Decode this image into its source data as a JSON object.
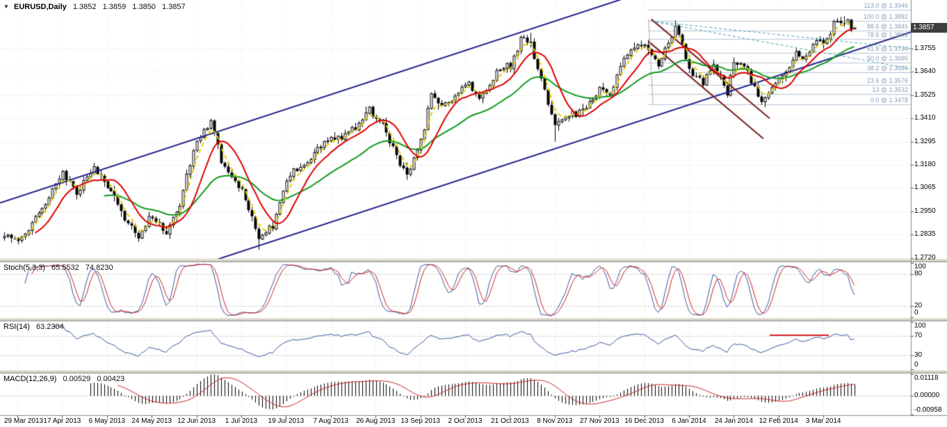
{
  "title_bar": {
    "symbol": "EURUSD,Daily",
    "open": "1.3852",
    "high": "1.3859",
    "low": "1.3850",
    "close": "1.3857"
  },
  "chart_data": {
    "type": "candlestick",
    "symbol": "EURUSD",
    "timeframe": "Daily",
    "x_labels": [
      "29 Mar 2013",
      "17 Apr 2013",
      "6 May 2013",
      "24 May 2013",
      "12 Jun 2013",
      "1 Jul 2013",
      "19 Jul 2013",
      "7 Aug 2013",
      "26 Aug 2013",
      "13 Sep 2013",
      "2 Oct 2013",
      "21 Oct 2013",
      "8 Nov 2013",
      "27 Nov 2013",
      "16 Dec 2013",
      "6 Jan 2014",
      "24 Jan 2014",
      "12 Feb 2014",
      "3 Mar 2014"
    ],
    "main": {
      "ylim": [
        1.2716,
        1.3995
      ],
      "y_ticks": [
        "1.3755",
        "1.3640",
        "1.3525",
        "1.3410",
        "1.3295",
        "1.3180",
        "1.3065",
        "1.2950",
        "1.2835",
        "1.2720"
      ],
      "price_badge": "1.3857",
      "grid_color": "#dcdcdc",
      "candles_n": 248,
      "candle_up_color": "#ffffff",
      "candle_down_color": "#000000",
      "candle_border_color": "#000000",
      "anchors": [
        [
          0,
          1.283
        ],
        [
          4,
          1.2812
        ],
        [
          8,
          1.289
        ],
        [
          13,
          1.302
        ],
        [
          17,
          1.313
        ],
        [
          21,
          1.3045
        ],
        [
          26,
          1.3165
        ],
        [
          30,
          1.3075
        ],
        [
          34,
          1.2945
        ],
        [
          39,
          1.2825
        ],
        [
          43,
          1.293
        ],
        [
          47,
          1.285
        ],
        [
          51,
          1.2985
        ],
        [
          56,
          1.331
        ],
        [
          60,
          1.34
        ],
        [
          63,
          1.3195
        ],
        [
          66,
          1.312
        ],
        [
          69,
          1.3055
        ],
        [
          74,
          1.2815
        ],
        [
          78,
          1.287
        ],
        [
          82,
          1.312
        ],
        [
          87,
          1.3175
        ],
        [
          91,
          1.3255
        ],
        [
          95,
          1.33
        ],
        [
          99,
          1.3335
        ],
        [
          102,
          1.336
        ],
        [
          106,
          1.3445
        ],
        [
          110,
          1.3375
        ],
        [
          114,
          1.3215
        ],
        [
          117,
          1.3125
        ],
        [
          121,
          1.329
        ],
        [
          124,
          1.3535
        ],
        [
          127,
          1.348
        ],
        [
          131,
          1.352
        ],
        [
          134,
          1.358
        ],
        [
          138,
          1.3515
        ],
        [
          143,
          1.364
        ],
        [
          147,
          1.3675
        ],
        [
          150,
          1.379
        ],
        [
          153,
          1.3795
        ],
        [
          156,
          1.3585
        ],
        [
          160,
          1.337
        ],
        [
          164,
          1.343
        ],
        [
          168,
          1.3445
        ],
        [
          171,
          1.35
        ],
        [
          173,
          1.357
        ],
        [
          176,
          1.3545
        ],
        [
          180,
          1.37
        ],
        [
          183,
          1.3775
        ],
        [
          187,
          1.3755
        ],
        [
          190,
          1.3665
        ],
        [
          195,
          1.3875
        ],
        [
          197,
          1.378
        ],
        [
          199,
          1.3635
        ],
        [
          203,
          1.359
        ],
        [
          206,
          1.3665
        ],
        [
          210,
          1.3545
        ],
        [
          212,
          1.3675
        ],
        [
          215,
          1.3665
        ],
        [
          218,
          1.3555
        ],
        [
          220,
          1.3485
        ],
        [
          224,
          1.359
        ],
        [
          227,
          1.364
        ],
        [
          230,
          1.372
        ],
        [
          233,
          1.37
        ],
        [
          235,
          1.3795
        ],
        [
          238,
          1.378
        ],
        [
          241,
          1.3865
        ],
        [
          244,
          1.3895
        ],
        [
          246,
          1.3865
        ],
        [
          247,
          1.3857
        ]
      ],
      "wick_overrides": [
        [
          74,
          "low",
          1.276
        ],
        [
          153,
          "high",
          1.3832
        ],
        [
          160,
          "low",
          1.3295
        ],
        [
          195,
          "high",
          1.3893
        ],
        [
          220,
          "low",
          1.3477
        ],
        [
          244,
          "high",
          1.3915
        ]
      ],
      "last_candle": [
        1.3852,
        1.3859,
        1.385,
        1.3857
      ],
      "moving_averages": [
        {
          "name": "ma-slow-green",
          "type": "ema",
          "period": 30,
          "color": "#119b1f",
          "width": 2
        },
        {
          "name": "ma-fast-yellow",
          "type": "ema",
          "period": 4,
          "color": "#e3cf00",
          "width": 2,
          "dash": [
            6,
            4
          ]
        },
        {
          "name": "ma-medium-red",
          "type": "sma",
          "period": 10,
          "color": "#e00000",
          "width": 2
        }
      ],
      "trendlines": [
        {
          "name": "ascending-channel-upper",
          "color": "#22228e",
          "width": 2,
          "pts": [
            [
              0.0,
              1.2992
            ],
            [
              1.0,
              1.4467
            ]
          ]
        },
        {
          "name": "ascending-channel-lower",
          "color": "#22228e",
          "width": 2,
          "pts": [
            [
              0.0,
              1.2361
            ],
            [
              1.0,
              1.3836
            ]
          ]
        },
        {
          "name": "descending-line-upper",
          "color": "#7c1f1f",
          "width": 2,
          "pts": [
            [
              0.715,
              1.39
            ],
            [
              0.845,
              1.341
            ]
          ]
        },
        {
          "name": "descending-line-lower",
          "color": "#7c1f1f",
          "width": 2,
          "pts": [
            [
              0.712,
              1.379
            ],
            [
              0.838,
              1.331
            ]
          ]
        },
        {
          "name": "fib-anchor-line",
          "color": "#a8a8a8",
          "width": 1,
          "pts": [
            [
              0.712,
              1.39
            ],
            [
              0.717,
              1.3478
            ]
          ]
        },
        {
          "name": "dashed-projection-1",
          "color": "#49a8a8",
          "width": 1,
          "dash": [
            4,
            3
          ],
          "pts": [
            [
              0.715,
              1.389
            ],
            [
              1.0,
              1.3755
            ]
          ]
        },
        {
          "name": "dashed-projection-2",
          "color": "#49a8a8",
          "width": 1,
          "dash": [
            4,
            3
          ],
          "pts": [
            [
              0.715,
              1.389
            ],
            [
              1.0,
              1.3655
            ]
          ]
        }
      ],
      "fibonacci": {
        "start_frac": 0.712,
        "line_color": "#b6c6d6",
        "label_color": "#8aa0b8",
        "levels": [
          {
            "label": "113.0 @ 1.3946",
            "price": 1.3946
          },
          {
            "label": "100.0 @ 1.3892",
            "price": 1.3892
          },
          {
            "label": "88.6 @ 1.3845",
            "price": 1.3845
          },
          {
            "label": "78.6 @ 1.3803",
            "price": 1.3803
          },
          {
            "label": "61.8 @ 1.3734",
            "price": 1.3734
          },
          {
            "label": "50.0 @ 1.3685",
            "price": 1.3685
          },
          {
            "label": "38.2 @ 1.3636",
            "price": 1.3636
          },
          {
            "label": "23.6 @ 1.3576",
            "price": 1.3576
          },
          {
            "label": "13 @ 1.3532",
            "price": 1.3532
          },
          {
            "label": "0.0 @ 1.3478",
            "price": 1.3478
          }
        ]
      }
    },
    "stochastic": {
      "label": "Stoch(5,3,3)",
      "k_value": "65.5532",
      "d_value": "74.8230",
      "params": [
        5,
        3,
        3
      ],
      "y_ticks": [
        "100",
        "80",
        "20",
        "0"
      ],
      "levels": [
        80,
        20
      ],
      "k_color": "#3a56a0",
      "d_color": "#cc2222"
    },
    "rsi": {
      "label": "RSI(14)",
      "value": "63.2304",
      "period": 14,
      "y_ticks": [
        "100",
        "70",
        "30",
        "0"
      ],
      "levels": [
        70,
        30
      ],
      "color": "#3a56a0",
      "red_segment": {
        "x": [
          0.845,
          0.91
        ],
        "value": 72,
        "color": "#dd2222"
      }
    },
    "macd": {
      "label": "MACD(12,26,9)",
      "macd_value": "0.00529",
      "signal_value": "0.00423",
      "params": [
        12,
        26,
        9
      ],
      "ylim": [
        -0.00958,
        0.01118
      ],
      "y_ticks": [
        "0.01118",
        "0.00000",
        "-0.00958"
      ],
      "hist_color": "#000000",
      "signal_color": "#cc2222"
    }
  }
}
